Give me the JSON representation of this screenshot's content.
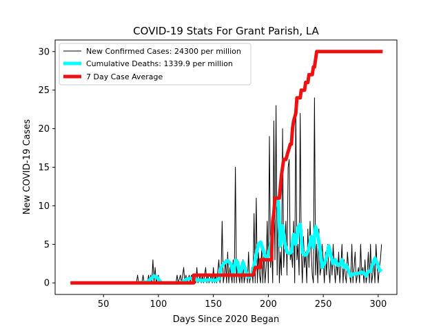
{
  "chart_data": {
    "type": "line",
    "title": "COVID-19 Stats For Grant Parish, LA",
    "xlabel": "Days Since 2020 Began",
    "ylabel": "New COVID-19 Cases",
    "xlim": [
      6,
      317
    ],
    "ylim": [
      -1.5,
      31.5
    ],
    "xticks": [
      50,
      100,
      150,
      200,
      250,
      300
    ],
    "yticks": [
      0,
      5,
      10,
      15,
      20,
      25,
      30
    ],
    "grid": false,
    "legend_position": "upper-left",
    "series": [
      {
        "name": "New Confirmed Cases: 24300 per million",
        "color": "#000000",
        "line_width": 1,
        "points": [
          [
            20,
            0
          ],
          [
            80,
            0
          ],
          [
            81,
            1
          ],
          [
            82,
            0
          ],
          [
            85,
            0
          ],
          [
            86,
            1
          ],
          [
            87,
            0
          ],
          [
            90,
            0
          ],
          [
            91,
            1
          ],
          [
            92,
            0
          ],
          [
            93,
            1
          ],
          [
            94,
            0
          ],
          [
            95,
            3
          ],
          [
            96,
            0
          ],
          [
            97,
            2
          ],
          [
            98,
            0
          ],
          [
            100,
            1
          ],
          [
            101,
            0
          ],
          [
            116,
            0
          ],
          [
            117,
            1
          ],
          [
            118,
            0
          ],
          [
            120,
            1
          ],
          [
            121,
            0
          ],
          [
            123,
            2
          ],
          [
            124,
            0
          ],
          [
            125,
            1
          ],
          [
            126,
            0
          ],
          [
            128,
            1
          ],
          [
            129,
            0
          ],
          [
            130,
            1
          ],
          [
            131,
            0
          ],
          [
            133,
            1
          ],
          [
            134,
            0
          ],
          [
            135,
            2
          ],
          [
            136,
            0
          ],
          [
            138,
            1
          ],
          [
            139,
            0
          ],
          [
            140,
            1
          ],
          [
            141,
            0
          ],
          [
            143,
            2
          ],
          [
            144,
            0
          ],
          [
            145,
            1
          ],
          [
            146,
            0
          ],
          [
            148,
            1
          ],
          [
            149,
            0
          ],
          [
            150,
            2
          ],
          [
            151,
            0
          ],
          [
            152,
            1
          ],
          [
            153,
            0
          ],
          [
            155,
            3
          ],
          [
            156,
            0
          ],
          [
            157,
            1
          ],
          [
            158,
            8
          ],
          [
            159,
            0
          ],
          [
            160,
            1
          ],
          [
            161,
            3
          ],
          [
            162,
            0
          ],
          [
            163,
            4
          ],
          [
            164,
            0
          ],
          [
            165,
            2
          ],
          [
            166,
            1
          ],
          [
            167,
            0
          ],
          [
            168,
            3
          ],
          [
            169,
            0
          ],
          [
            170,
            15
          ],
          [
            171,
            0
          ],
          [
            172,
            3
          ],
          [
            173,
            1
          ],
          [
            174,
            0
          ],
          [
            175,
            2
          ],
          [
            176,
            0
          ],
          [
            177,
            3
          ],
          [
            178,
            0
          ],
          [
            180,
            2
          ],
          [
            181,
            0
          ],
          [
            182,
            4
          ],
          [
            183,
            0
          ],
          [
            184,
            1
          ],
          [
            185,
            2
          ],
          [
            186,
            0
          ],
          [
            187,
            9
          ],
          [
            188,
            0
          ],
          [
            189,
            11
          ],
          [
            190,
            0
          ],
          [
            191,
            4
          ],
          [
            192,
            1
          ],
          [
            193,
            0
          ],
          [
            194,
            5
          ],
          [
            195,
            0
          ],
          [
            196,
            4
          ],
          [
            197,
            0
          ],
          [
            198,
            2
          ],
          [
            199,
            8
          ],
          [
            200,
            0
          ],
          [
            201,
            19
          ],
          [
            202,
            2
          ],
          [
            203,
            5
          ],
          [
            204,
            0
          ],
          [
            205,
            21
          ],
          [
            206,
            3
          ],
          [
            207,
            23
          ],
          [
            208,
            1
          ],
          [
            209,
            11
          ],
          [
            210,
            0
          ],
          [
            211,
            4
          ],
          [
            212,
            1
          ],
          [
            213,
            20
          ],
          [
            214,
            2
          ],
          [
            215,
            5
          ],
          [
            216,
            8
          ],
          [
            217,
            1
          ],
          [
            218,
            15
          ],
          [
            219,
            16
          ],
          [
            220,
            3
          ],
          [
            221,
            4
          ],
          [
            222,
            2
          ],
          [
            223,
            8
          ],
          [
            224,
            0
          ],
          [
            225,
            23
          ],
          [
            226,
            3
          ],
          [
            227,
            5
          ],
          [
            228,
            1
          ],
          [
            229,
            22
          ],
          [
            230,
            4
          ],
          [
            231,
            0
          ],
          [
            232,
            6
          ],
          [
            233,
            2
          ],
          [
            234,
            4
          ],
          [
            235,
            0
          ],
          [
            236,
            7
          ],
          [
            237,
            2
          ],
          [
            238,
            8
          ],
          [
            239,
            4
          ],
          [
            240,
            1
          ],
          [
            241,
            0
          ],
          [
            242,
            24
          ],
          [
            243,
            1
          ],
          [
            244,
            5
          ],
          [
            245,
            0
          ],
          [
            246,
            7
          ],
          [
            247,
            1
          ],
          [
            248,
            2
          ],
          [
            249,
            5
          ],
          [
            250,
            3
          ],
          [
            251,
            0
          ],
          [
            252,
            4
          ],
          [
            253,
            1
          ],
          [
            254,
            5
          ],
          [
            255,
            2
          ],
          [
            256,
            0
          ],
          [
            257,
            4
          ],
          [
            258,
            1
          ],
          [
            259,
            5
          ],
          [
            260,
            2
          ],
          [
            261,
            0
          ],
          [
            262,
            3
          ],
          [
            263,
            1
          ],
          [
            264,
            4
          ],
          [
            265,
            0
          ],
          [
            266,
            2
          ],
          [
            267,
            5
          ],
          [
            268,
            0
          ],
          [
            269,
            3
          ],
          [
            270,
            1
          ],
          [
            271,
            0
          ],
          [
            272,
            4
          ],
          [
            273,
            2
          ],
          [
            274,
            1
          ],
          [
            275,
            0
          ],
          [
            276,
            5
          ],
          [
            277,
            0
          ],
          [
            278,
            2
          ],
          [
            279,
            4
          ],
          [
            280,
            0
          ],
          [
            281,
            1
          ],
          [
            282,
            2
          ],
          [
            283,
            0
          ],
          [
            284,
            5
          ],
          [
            285,
            1
          ],
          [
            286,
            2
          ],
          [
            287,
            0
          ],
          [
            288,
            3
          ],
          [
            289,
            0
          ],
          [
            290,
            1
          ],
          [
            291,
            4
          ],
          [
            292,
            0
          ],
          [
            293,
            5
          ],
          [
            294,
            0
          ],
          [
            295,
            1
          ],
          [
            296,
            3
          ],
          [
            297,
            0
          ],
          [
            298,
            5
          ],
          [
            299,
            2
          ],
          [
            300,
            0
          ],
          [
            301,
            2
          ],
          [
            302,
            3
          ],
          [
            303,
            5
          ]
        ]
      },
      {
        "name": "Cumulative Deaths: 1339.9 per million",
        "color": "#00ffff",
        "line_width": 5,
        "points": [
          [
            80,
            0
          ],
          [
            90,
            0.1
          ],
          [
            93,
            0.5
          ],
          [
            96,
            0.9
          ],
          [
            99,
            0.7
          ],
          [
            101,
            0.3
          ],
          [
            103,
            0
          ],
          [
            120,
            0
          ],
          [
            123,
            0.2
          ],
          [
            126,
            0.5
          ],
          [
            130,
            0.6
          ],
          [
            134,
            0.4
          ],
          [
            140,
            0.3
          ],
          [
            146,
            0.4
          ],
          [
            152,
            0.3
          ],
          [
            155,
            0.5
          ],
          [
            157,
            2
          ],
          [
            160,
            2.6
          ],
          [
            163,
            2.9
          ],
          [
            166,
            2.4
          ],
          [
            168,
            1.1
          ],
          [
            170,
            2.9
          ],
          [
            172,
            2.7
          ],
          [
            174,
            1
          ],
          [
            177,
            2.7
          ],
          [
            180,
            1.3
          ],
          [
            182,
            0.7
          ],
          [
            185,
            1
          ],
          [
            187,
            2.3
          ],
          [
            189,
            3.7
          ],
          [
            191,
            5
          ],
          [
            193,
            5.3
          ],
          [
            195,
            4.4
          ],
          [
            197,
            3.5
          ],
          [
            199,
            3.2
          ],
          [
            201,
            4.2
          ],
          [
            203,
            5.5
          ],
          [
            205,
            9
          ],
          [
            207,
            11
          ],
          [
            209,
            10.5
          ],
          [
            211,
            4.8
          ],
          [
            213,
            7.4
          ],
          [
            215,
            5.2
          ],
          [
            217,
            4
          ],
          [
            219,
            3.8
          ],
          [
            221,
            4
          ],
          [
            223,
            6.3
          ],
          [
            225,
            5
          ],
          [
            227,
            7.2
          ],
          [
            229,
            7.6
          ],
          [
            231,
            4
          ],
          [
            233,
            3.6
          ],
          [
            235,
            3.7
          ],
          [
            237,
            4.5
          ],
          [
            239,
            6
          ],
          [
            241,
            4.6
          ],
          [
            243,
            7.3
          ],
          [
            245,
            6.2
          ],
          [
            247,
            4.4
          ],
          [
            249,
            2
          ],
          [
            251,
            2.5
          ],
          [
            253,
            3.3
          ],
          [
            255,
            4.8
          ],
          [
            257,
            3.5
          ],
          [
            259,
            2.5
          ],
          [
            261,
            3
          ],
          [
            263,
            2.3
          ],
          [
            265,
            2.3
          ],
          [
            267,
            3
          ],
          [
            269,
            2
          ],
          [
            271,
            2.3
          ],
          [
            273,
            1.6
          ],
          [
            275,
            0.9
          ],
          [
            277,
            1.1
          ],
          [
            279,
            1.2
          ],
          [
            281,
            1.2
          ],
          [
            283,
            1.3
          ],
          [
            285,
            1.4
          ],
          [
            287,
            1.3
          ],
          [
            289,
            0.9
          ],
          [
            291,
            1.5
          ],
          [
            293,
            1.5
          ],
          [
            295,
            2.5
          ],
          [
            297,
            3.2
          ],
          [
            299,
            2.6
          ],
          [
            301,
            1.7
          ],
          [
            303,
            1.5
          ]
        ]
      },
      {
        "name": "7 Day Case Average",
        "color": "#ee1111",
        "line_width": 5,
        "points": [
          [
            20,
            0
          ],
          [
            132,
            0
          ],
          [
            132,
            1
          ],
          [
            186,
            1
          ],
          [
            187,
            1.4
          ],
          [
            188,
            2
          ],
          [
            193,
            2
          ],
          [
            193,
            3
          ],
          [
            203,
            3
          ],
          [
            203,
            4
          ],
          [
            204,
            8
          ],
          [
            205,
            9
          ],
          [
            206,
            11
          ],
          [
            208,
            11
          ],
          [
            210,
            11
          ],
          [
            212,
            14
          ],
          [
            214,
            16
          ],
          [
            216,
            16
          ],
          [
            218,
            17
          ],
          [
            220,
            18
          ],
          [
            221,
            18
          ],
          [
            222,
            20
          ],
          [
            223,
            21
          ],
          [
            225,
            22
          ],
          [
            226,
            24
          ],
          [
            229,
            24
          ],
          [
            230,
            25
          ],
          [
            233,
            25
          ],
          [
            234,
            26
          ],
          [
            236,
            26
          ],
          [
            237,
            27
          ],
          [
            240,
            27
          ],
          [
            241,
            28
          ],
          [
            242,
            28
          ],
          [
            243,
            29
          ],
          [
            244,
            30
          ],
          [
            304,
            30
          ]
        ]
      }
    ]
  }
}
